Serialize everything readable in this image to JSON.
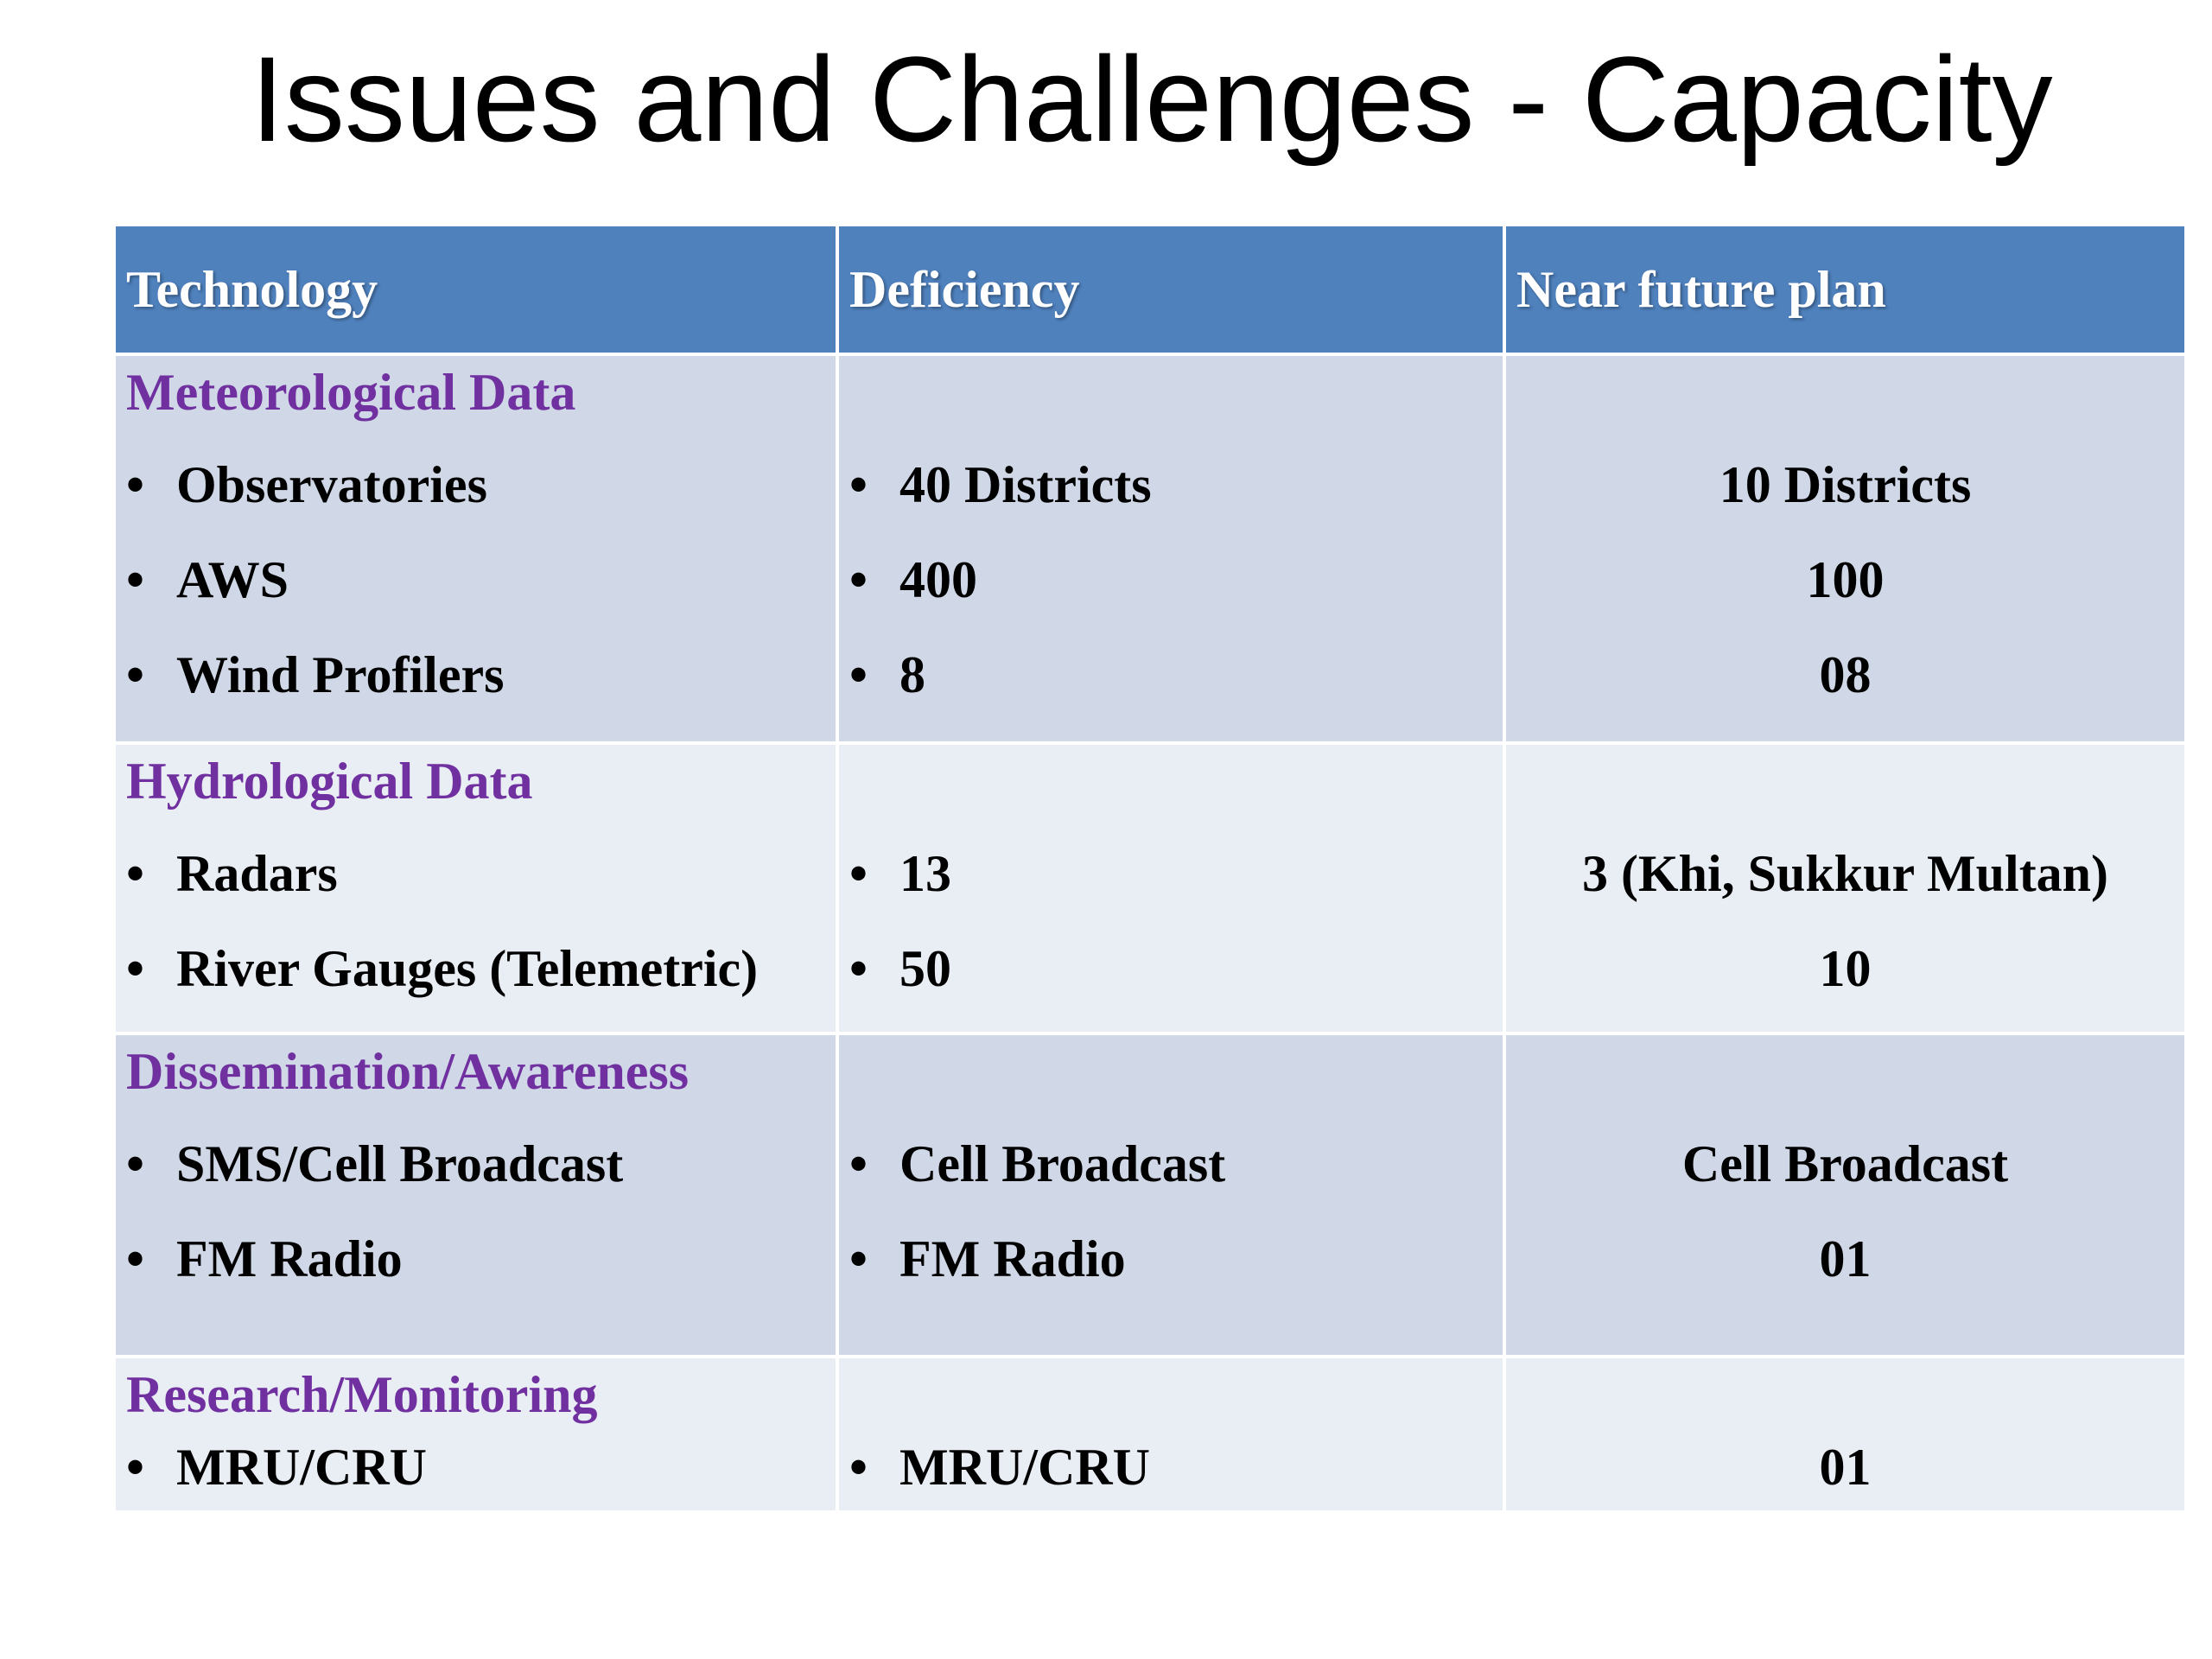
{
  "title": "Issues and Challenges - Capacity",
  "table": {
    "headers": [
      "Technology",
      "Deficiency",
      "Near future plan"
    ],
    "bullet": "•",
    "sections": [
      {
        "heading": "Meteorological Data",
        "rows": [
          {
            "technology": "Observatories",
            "deficiency": "40 Districts",
            "plan": "10 Districts"
          },
          {
            "technology": "AWS",
            "deficiency": "400",
            "plan": "100"
          },
          {
            "technology": "Wind Profilers",
            "deficiency": "8",
            "plan": "08"
          }
        ]
      },
      {
        "heading": "Hydrological Data",
        "rows": [
          {
            "technology": "Radars",
            "deficiency": "13",
            "plan": "3 (Khi, Sukkur Multan)"
          },
          {
            "technology": "River Gauges (Telemetric)",
            "deficiency": "50",
            "plan": "10"
          }
        ]
      },
      {
        "heading": "Dissemination/Awareness",
        "rows": [
          {
            "technology": "SMS/Cell Broadcast",
            "deficiency": "Cell Broadcast",
            "plan": "Cell Broadcast"
          },
          {
            "technology": "FM Radio",
            "deficiency": "FM Radio",
            "plan": "01"
          }
        ]
      },
      {
        "heading": "Research/Monitoring",
        "rows": [
          {
            "technology": "MRU/CRU",
            "deficiency": "MRU/CRU",
            "plan": "01"
          }
        ]
      }
    ]
  },
  "colors": {
    "header_fill": "#4f81bd",
    "band_dark": "#d0d8e8",
    "band_light": "#e9edf4",
    "section_heading": "#7030a0"
  }
}
